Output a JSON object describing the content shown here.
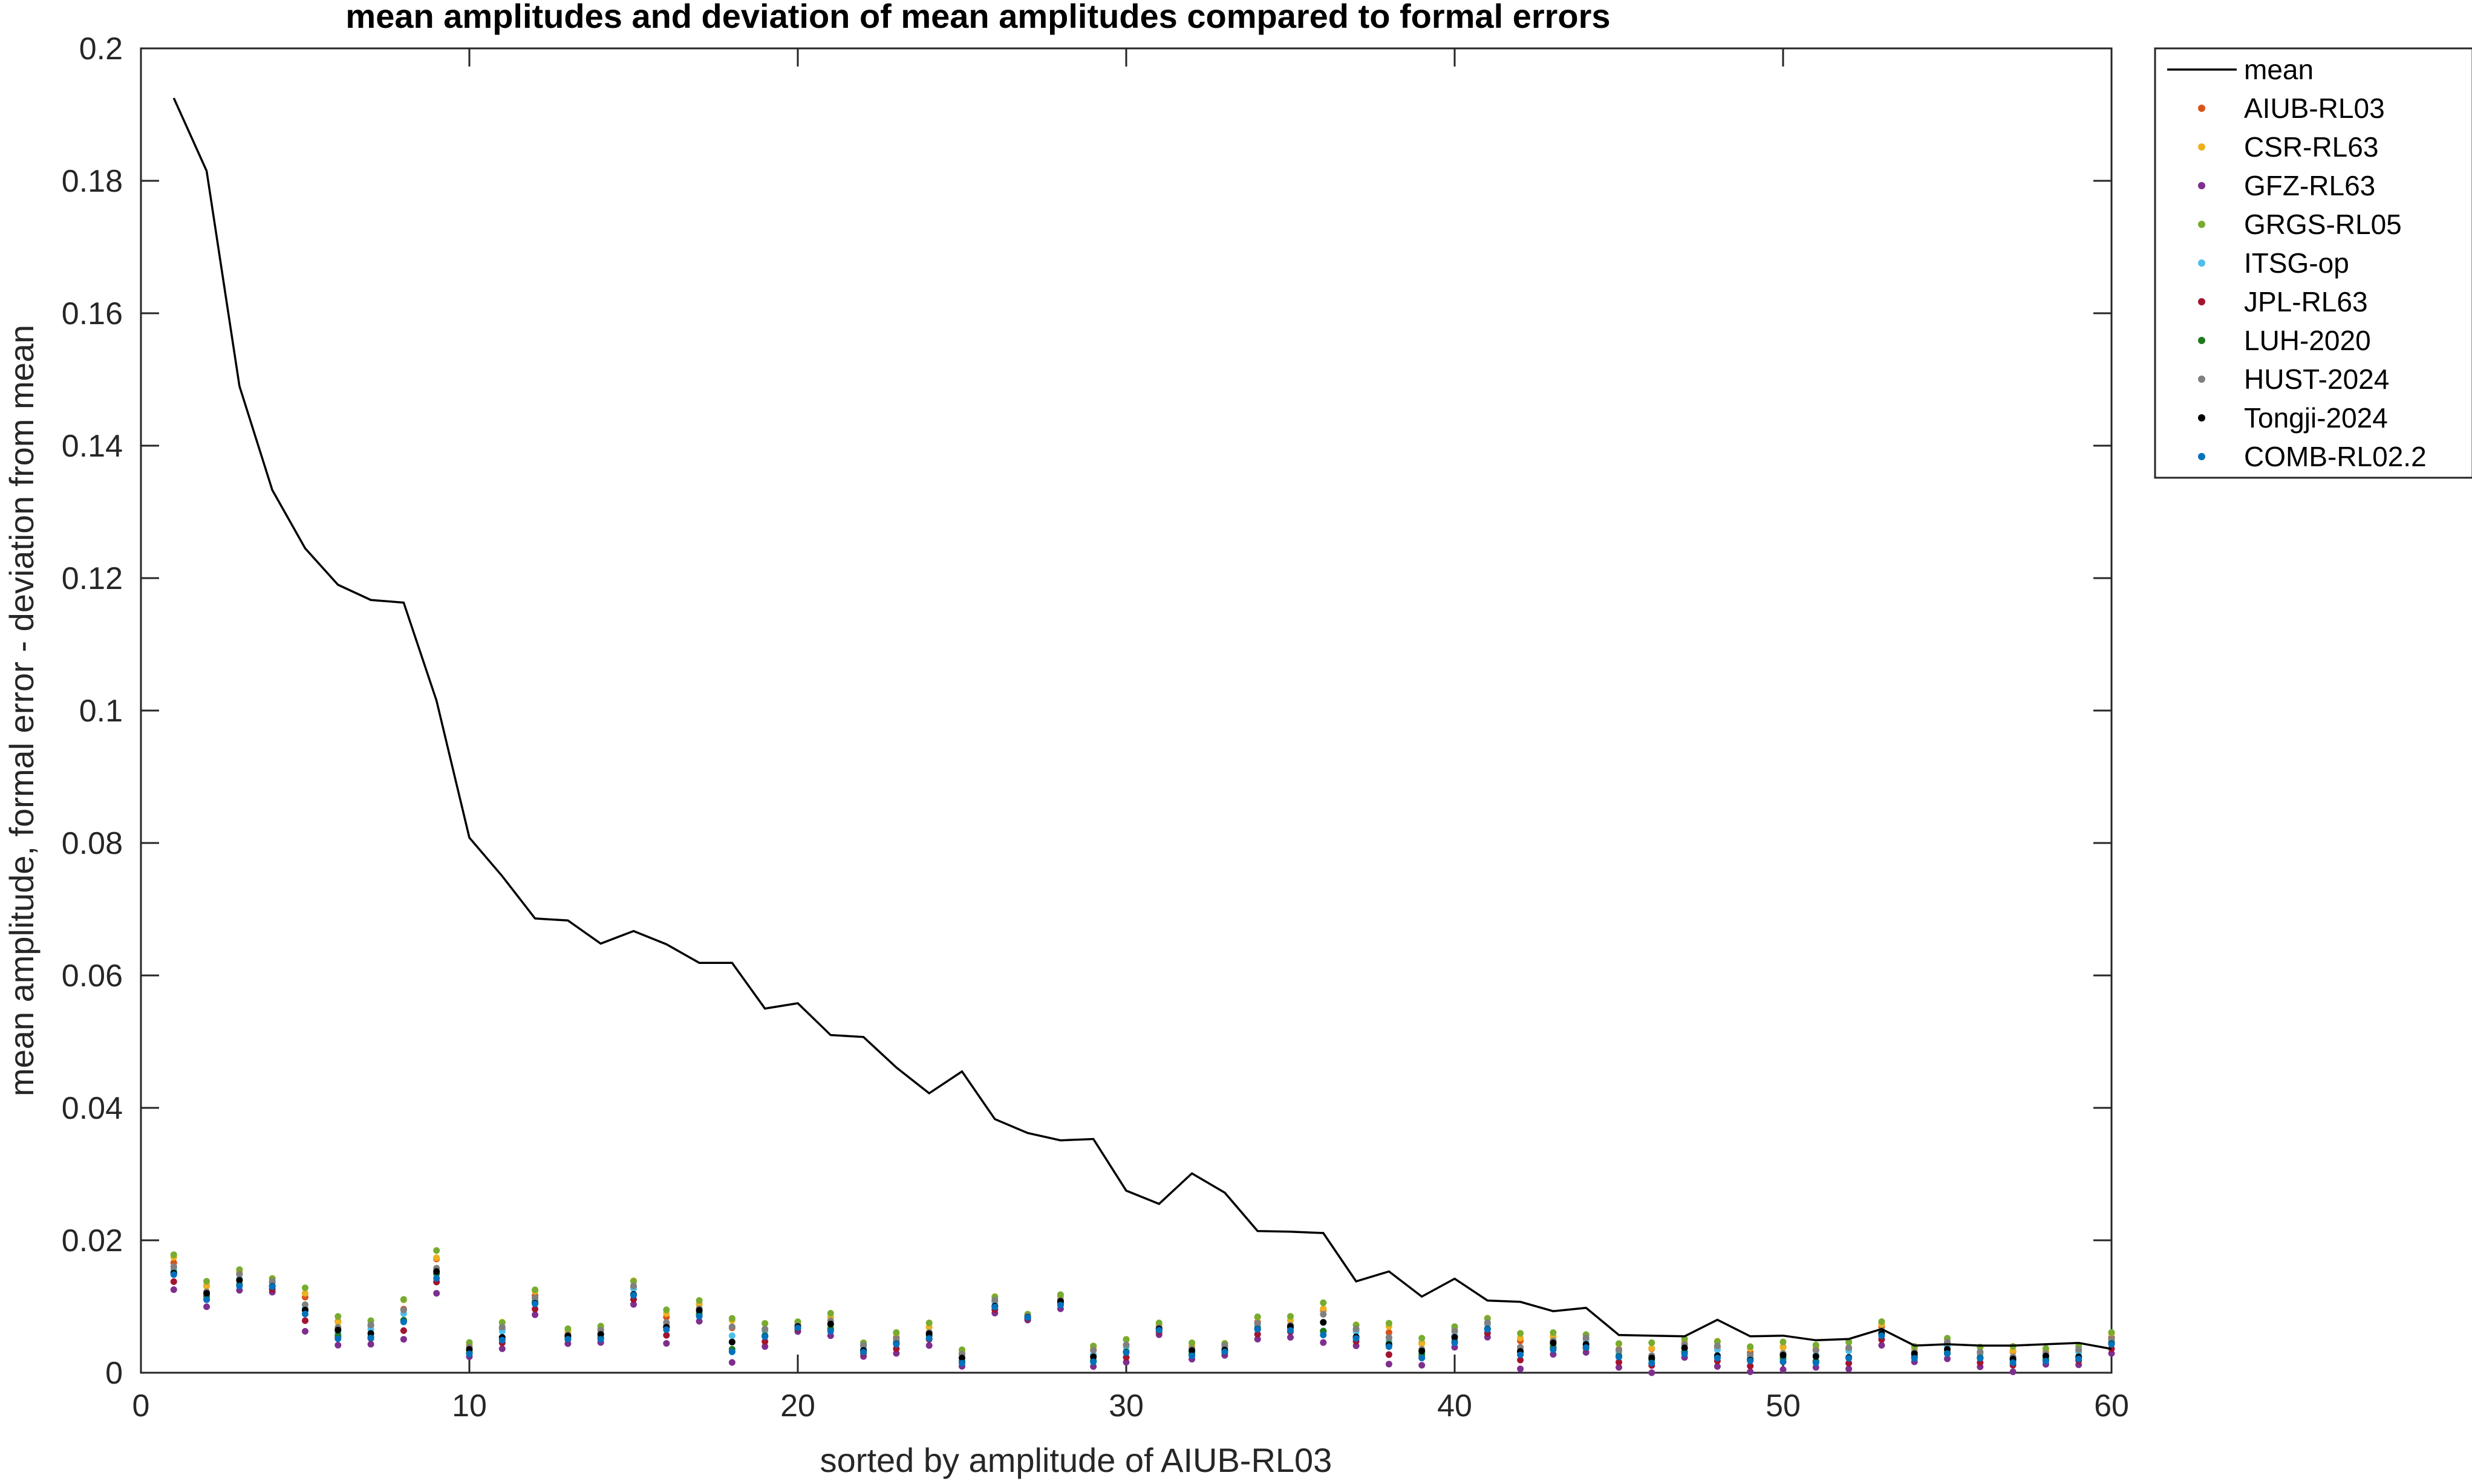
{
  "chart_data": {
    "type": "line",
    "title": "mean amplitudes and deviation of mean amplitudes compared to formal errors",
    "xlabel": "sorted by amplitude of AIUB-RL03",
    "ylabel": "mean amplitude, formal error - deviation from mean",
    "xlim": [
      0,
      60
    ],
    "ylim": [
      0,
      0.2
    ],
    "grid": false,
    "legend_position": "outside-top-right",
    "x_ticks": [
      "0",
      "10",
      "20",
      "30",
      "40",
      "50",
      "60"
    ],
    "y_ticks": [
      "0",
      "0.02",
      "0.04",
      "0.06",
      "0.08",
      "0.1",
      "0.12",
      "0.14",
      "0.16",
      "0.18",
      "0.2"
    ],
    "x_tick_values": [
      0,
      10,
      20,
      30,
      40,
      50,
      60
    ],
    "y_tick_values": [
      0,
      0.02,
      0.04,
      0.06,
      0.08,
      0.1,
      0.12,
      0.14,
      0.16,
      0.18,
      0.2
    ],
    "mean": {
      "name": "mean",
      "color": "#000000",
      "x": [
        1,
        2,
        3,
        4,
        5,
        6,
        7,
        8,
        9,
        10,
        11,
        12,
        13,
        14,
        15,
        16,
        17,
        18,
        19,
        20,
        21,
        22,
        23,
        24,
        25,
        26,
        27,
        28,
        29,
        30,
        31,
        32,
        33,
        34,
        35,
        36,
        37,
        38,
        39,
        40,
        41,
        42,
        43,
        44,
        45,
        46,
        47,
        48,
        49,
        50,
        51,
        52,
        53,
        54,
        55,
        56,
        57,
        58,
        59,
        60
      ],
      "values": [
        0.1925,
        0.1815,
        0.149,
        0.1333,
        0.1245,
        0.119,
        0.1167,
        0.1163,
        0.1015,
        0.0808,
        0.075,
        0.0686,
        0.0683,
        0.0648,
        0.0667,
        0.0647,
        0.0619,
        0.0619,
        0.055,
        0.0558,
        0.051,
        0.0507,
        0.0461,
        0.0422,
        0.0455,
        0.0383,
        0.0362,
        0.0351,
        0.0353,
        0.0275,
        0.0255,
        0.0301,
        0.0272,
        0.0214,
        0.0213,
        0.0211,
        0.0138,
        0.0153,
        0.0115,
        0.0142,
        0.0109,
        0.0107,
        0.0093,
        0.0098,
        0.0057,
        0.0056,
        0.0055,
        0.008,
        0.0055,
        0.0056,
        0.0049,
        0.0051,
        0.0066,
        0.0041,
        0.0043,
        0.0041,
        0.0041,
        0.0043,
        0.0045,
        0.0036
      ]
    },
    "series": [
      {
        "name": "AIUB-RL03",
        "color": "#D95319"
      },
      {
        "name": "CSR-RL63",
        "color": "#EDB120"
      },
      {
        "name": "GFZ-RL63",
        "color": "#7E2F8E"
      },
      {
        "name": "GRGS-RL05",
        "color": "#77AC30"
      },
      {
        "name": "ITSG-op",
        "color": "#4DBEEE"
      },
      {
        "name": "JPL-RL63",
        "color": "#A2142F"
      },
      {
        "name": "LUH-2020",
        "color": "#1E7A1E"
      },
      {
        "name": "HUST-2024",
        "color": "#808080"
      },
      {
        "name": "Tongji-2024",
        "color": "#000000"
      },
      {
        "name": "COMB-RL02.2",
        "color": "#0072BD"
      }
    ],
    "deviation_points": {
      "x": [
        1,
        2,
        3,
        4,
        5,
        6,
        7,
        8,
        9,
        10,
        11,
        12,
        13,
        14,
        15,
        16,
        17,
        18,
        19,
        20,
        21,
        22,
        23,
        24,
        25,
        26,
        27,
        28,
        29,
        30,
        31,
        32,
        33,
        34,
        35,
        36,
        37,
        38,
        39,
        40,
        41,
        42,
        43,
        44,
        45,
        46,
        47,
        48,
        49,
        50,
        51,
        52,
        53,
        54,
        55,
        56,
        57,
        58,
        59,
        60
      ],
      "center": [
        0.0158,
        0.0122,
        0.0144,
        0.0135,
        0.0102,
        0.0067,
        0.0066,
        0.0089,
        0.0158,
        0.0037,
        0.0062,
        0.0111,
        0.0057,
        0.0061,
        0.0126,
        0.0075,
        0.0096,
        0.0058,
        0.0062,
        0.0071,
        0.0076,
        0.0038,
        0.0049,
        0.0061,
        0.0025,
        0.0106,
        0.0085,
        0.0109,
        0.0029,
        0.0038,
        0.0068,
        0.0035,
        0.0038,
        0.0072,
        0.0072,
        0.0082,
        0.0061,
        0.0051,
        0.0035,
        0.0058,
        0.0072,
        0.0038,
        0.0047,
        0.0048,
        0.0031,
        0.0026,
        0.004,
        0.0034,
        0.0025,
        0.0029,
        0.0029,
        0.0032,
        0.0063,
        0.003,
        0.0041,
        0.0028,
        0.0024,
        0.0027,
        0.003,
        0.0049
      ],
      "spread": [
        0.0018,
        0.0014,
        0.0014,
        0.0008,
        0.0022,
        0.0017,
        0.0016,
        0.0022,
        0.0022,
        0.0009,
        0.0017,
        0.0013,
        0.0008,
        0.0011,
        0.0014,
        0.0017,
        0.0012,
        0.003,
        0.0013,
        0.0005,
        0.0014,
        0.0009,
        0.0011,
        0.0012,
        0.0011,
        0.001,
        0.0003,
        0.0008,
        0.0014,
        0.0013,
        0.0006,
        0.001,
        0.0008,
        0.0012,
        0.0011,
        0.0026,
        0.0013,
        0.0021,
        0.0015,
        0.0014,
        0.0011,
        0.0018,
        0.0013,
        0.0012,
        0.0013,
        0.0016,
        0.0012,
        0.0016,
        0.0013,
        0.0015,
        0.0015,
        0.0016,
        0.0012,
        0.0009,
        0.0014,
        0.0011,
        0.0013,
        0.001,
        0.0012,
        0.0011
      ]
    }
  }
}
